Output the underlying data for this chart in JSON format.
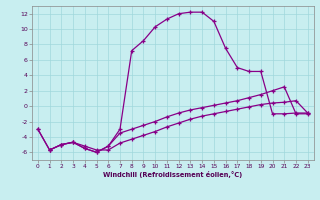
{
  "xlabel": "Windchill (Refroidissement éolien,°C)",
  "background_color": "#c8eef0",
  "line_color": "#880088",
  "xlim": [
    -0.5,
    23.5
  ],
  "ylim": [
    -7,
    13
  ],
  "xticks": [
    0,
    1,
    2,
    3,
    4,
    5,
    6,
    7,
    8,
    9,
    10,
    11,
    12,
    13,
    14,
    15,
    16,
    17,
    18,
    19,
    20,
    21,
    22,
    23
  ],
  "yticks": [
    -6,
    -4,
    -2,
    0,
    2,
    4,
    6,
    8,
    10,
    12
  ],
  "lines": [
    {
      "x": [
        0,
        1,
        2,
        3,
        4,
        5,
        6,
        7,
        8,
        9,
        10,
        11,
        12,
        13,
        14,
        15,
        16,
        17,
        18,
        19,
        20,
        21,
        22,
        23
      ],
      "y": [
        -3,
        -5.7,
        -5,
        -4.7,
        -5.2,
        -5.7,
        -5.7,
        -4.8,
        -4.3,
        -3.8,
        -3.3,
        -2.7,
        -2.2,
        -1.7,
        -1.3,
        -1.0,
        -0.7,
        -0.4,
        -0.1,
        0.2,
        0.4,
        0.5,
        0.7,
        -0.9
      ]
    },
    {
      "x": [
        0,
        1,
        2,
        3,
        4,
        5,
        6,
        7,
        8,
        9,
        10,
        11,
        12,
        13,
        14,
        15,
        16,
        17,
        18,
        19,
        20,
        21,
        22,
        23
      ],
      "y": [
        -3,
        -5.7,
        -5.0,
        -4.7,
        -5.5,
        -6.0,
        -5.2,
        -3.5,
        -3.0,
        -2.5,
        -2.0,
        -1.4,
        -0.9,
        -0.5,
        -0.2,
        0.1,
        0.4,
        0.7,
        1.1,
        1.5,
        2.0,
        2.5,
        -1.0,
        -1.0
      ]
    },
    {
      "x": [
        1,
        2,
        3,
        4,
        5,
        6,
        7,
        8,
        9,
        10,
        11,
        12,
        13,
        14,
        15,
        16,
        17,
        18,
        19,
        20,
        21,
        22,
        23
      ],
      "y": [
        -5.7,
        -5.0,
        -4.7,
        -5.5,
        -6.0,
        -5.2,
        -3.0,
        7.2,
        8.5,
        10.3,
        11.3,
        12.0,
        12.2,
        12.2,
        11.0,
        7.5,
        5.0,
        4.5,
        4.5,
        -1.0,
        -1.0,
        -0.9,
        -0.9
      ]
    }
  ]
}
